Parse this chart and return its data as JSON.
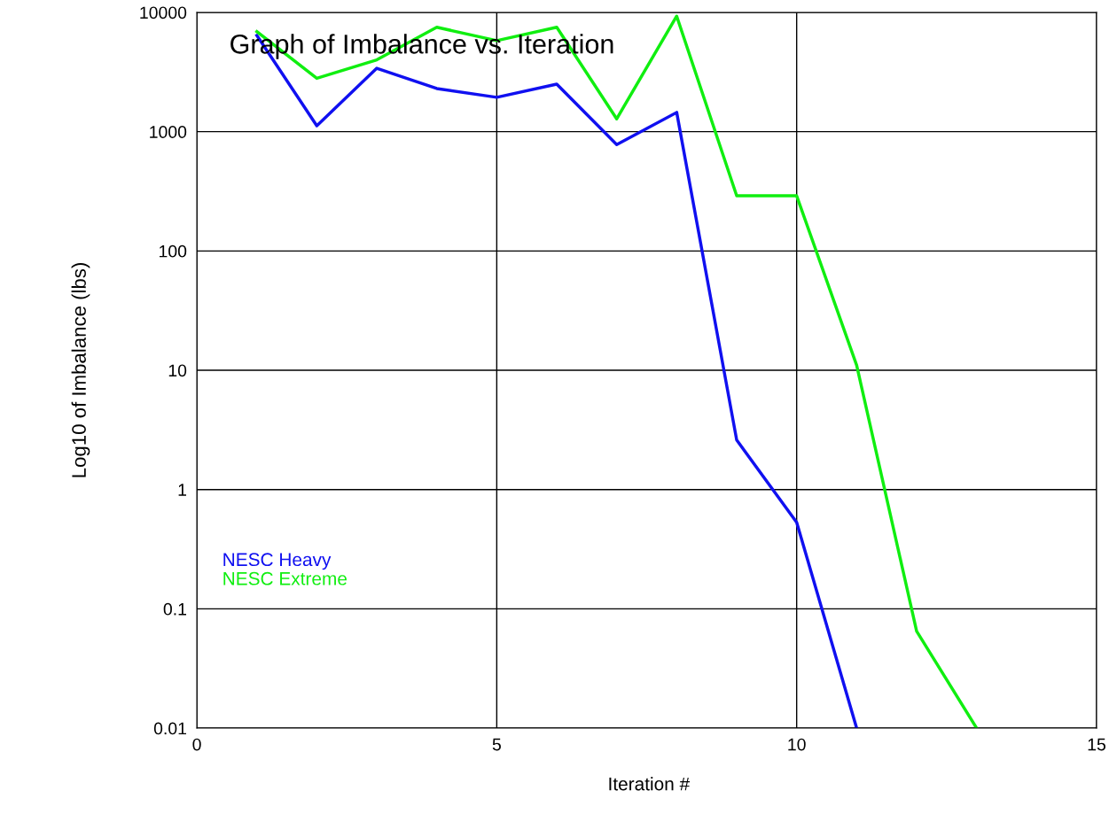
{
  "chart_data": {
    "type": "line",
    "title": "Graph of Imbalance vs. Iteration",
    "xlabel": "Iteration #",
    "ylabel": "Log10 of Imbalance (lbs)",
    "x": [
      1,
      2,
      3,
      4,
      5,
      6,
      7,
      8,
      9,
      10,
      11,
      12,
      13
    ],
    "series": [
      {
        "name": "NESC Heavy",
        "color": "#1010f0",
        "values": [
          6400,
          1120,
          3400,
          2300,
          1940,
          2500,
          780,
          1450,
          2.6,
          0.53,
          0.01,
          null,
          null
        ]
      },
      {
        "name": "NESC Extreme",
        "color": "#10ee10",
        "values": [
          6900,
          2800,
          4000,
          7500,
          5800,
          7500,
          1280,
          9300,
          290,
          290,
          11,
          0.065,
          0.01
        ]
      }
    ],
    "log": "y",
    "xlim": [
      0,
      15
    ],
    "xticks": [
      0,
      5,
      10,
      15
    ],
    "ylim": [
      0.01,
      10000
    ],
    "yticks": [
      0.01,
      0.1,
      1,
      10,
      100,
      1000,
      10000
    ],
    "grid": true,
    "legend": "left",
    "marker": "none",
    "line_style": "solid"
  }
}
